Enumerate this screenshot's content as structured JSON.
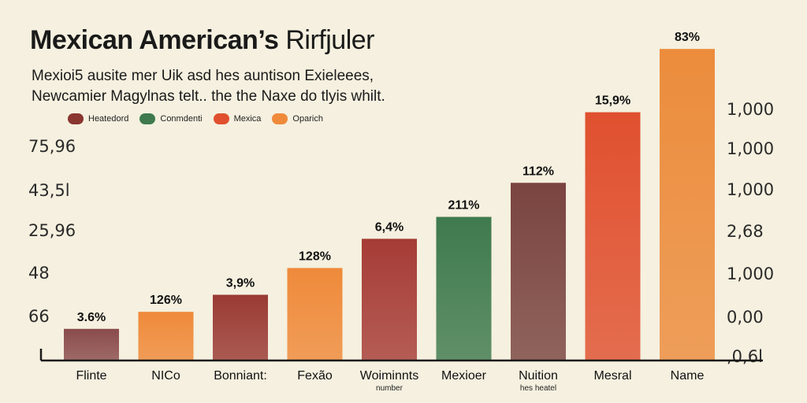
{
  "colors": {
    "maroon": "#8a3530",
    "green": "#3f7a4e",
    "red": "#e0502f",
    "orange": "#ef8a3a",
    "mauve": "#7a4440",
    "background": "#f5f0df"
  },
  "chart_data": {
    "type": "bar",
    "title_bold": "Mexican American’s",
    "title_thin": "Rirfjuler",
    "subtitle_line1": "Mexioi5 ausite mer Uik asd hes auntison Exieleees,",
    "subtitle_line2": "Newcamier Magylnas telt.. the the Naxe do tlyis whilt.",
    "legend": [
      {
        "label": "Heatedord",
        "color": "#8a3530"
      },
      {
        "label": "Conmdenti",
        "color": "#3f7a4e"
      },
      {
        "label": "Mexica",
        "color": "#e0502f"
      },
      {
        "label": "Oparich",
        "color": "#ef8a3a"
      }
    ],
    "left_ticks": [
      "75,96",
      "43,5l",
      "25,96",
      "48",
      "66"
    ],
    "right_ticks": [
      "1,000",
      "1,000",
      "1,000",
      "2,68",
      "1,000",
      "0,00",
      ",0,6l"
    ],
    "categories": [
      "Flinte",
      "NICo",
      "Bonniant:",
      "Fexão",
      "Woiminnts",
      "Mexioer",
      "Nuition",
      "Mesral",
      "Name"
    ],
    "category_sublabels": [
      "",
      "",
      "",
      "",
      "number",
      "",
      "hes heatel",
      "",
      ""
    ],
    "values": [
      13,
      20,
      27,
      38,
      50,
      59,
      73,
      102,
      128
    ],
    "data_labels": [
      "3.6%",
      "126%",
      "3,9%",
      "128%",
      "6,4%",
      "211%",
      "112%",
      "15,9%",
      "83%"
    ],
    "bar_colors": [
      "#8a4c4c",
      "#ef8a3a",
      "#9a3a34",
      "#ef8a3a",
      "#a63c36",
      "#3f7a4e",
      "#7a4440",
      "#e0502f",
      "#ec8c3c"
    ],
    "ylim": [
      0,
      130
    ]
  }
}
